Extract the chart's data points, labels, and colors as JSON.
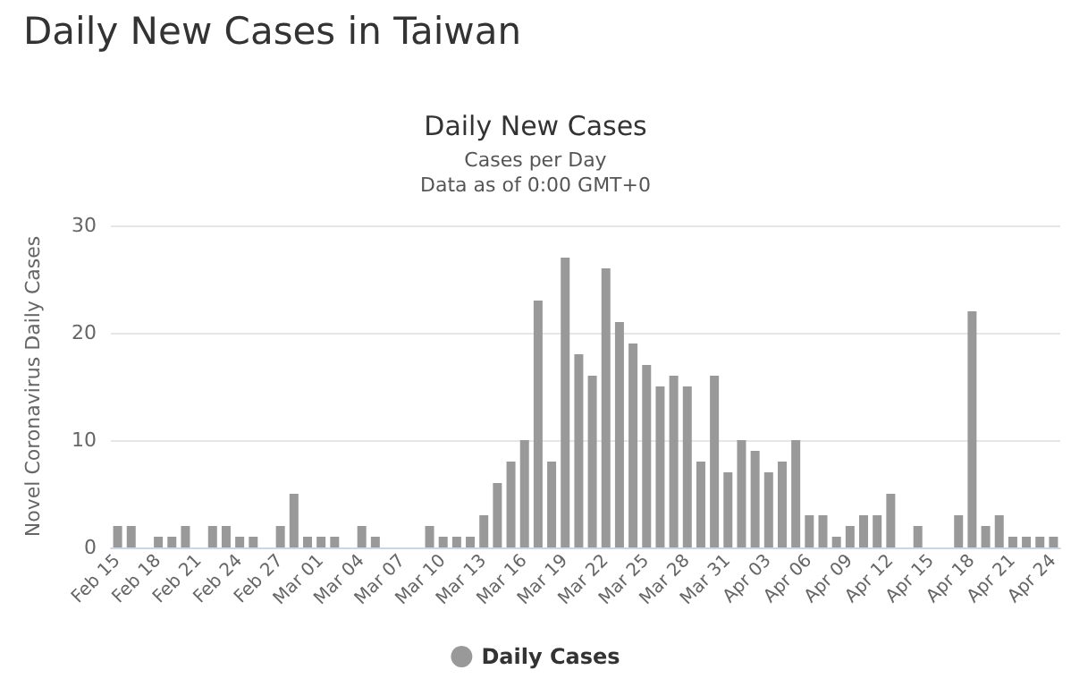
{
  "chart_data": {
    "type": "bar",
    "title": "Daily New Cases in Taiwan",
    "subtitle": "Daily New Cases",
    "annotations": [
      "Cases per Day",
      "Data as of 0:00 GMT+0"
    ],
    "ylabel": "Novel Coronavirus Daily Cases",
    "categories": [
      "Feb 15",
      null,
      null,
      "Feb 18",
      null,
      null,
      "Feb 21",
      null,
      null,
      "Feb 24",
      null,
      null,
      "Feb 27",
      null,
      null,
      "Mar 01",
      null,
      null,
      "Mar 04",
      null,
      null,
      "Mar 07",
      null,
      null,
      "Mar 10",
      null,
      null,
      "Mar 13",
      null,
      null,
      "Mar 16",
      null,
      null,
      "Mar 19",
      null,
      null,
      "Mar 22",
      null,
      null,
      "Mar 25",
      null,
      null,
      "Mar 28",
      null,
      null,
      "Mar 31",
      null,
      null,
      "Apr 03",
      null,
      null,
      "Apr 06",
      null,
      null,
      "Apr 09",
      null,
      null,
      "Apr 12",
      null,
      null,
      "Apr 15",
      null,
      null,
      "Apr 18",
      null,
      null,
      "Apr 21",
      null,
      null,
      "Apr 24"
    ],
    "series": [
      {
        "name": "Daily Cases",
        "color": "#999999",
        "values": [
          2,
          2,
          0,
          1,
          1,
          2,
          0,
          2,
          2,
          1,
          1,
          0,
          2,
          5,
          1,
          1,
          1,
          0,
          2,
          1,
          0,
          0,
          0,
          2,
          1,
          1,
          1,
          3,
          6,
          8,
          10,
          23,
          8,
          27,
          18,
          16,
          26,
          21,
          19,
          17,
          15,
          16,
          15,
          8,
          16,
          7,
          10,
          9,
          7,
          8,
          10,
          3,
          3,
          1,
          2,
          3,
          3,
          5,
          0,
          2,
          0,
          0,
          3,
          22,
          2,
          3,
          1,
          1,
          1,
          1
        ]
      }
    ],
    "ylim": [
      0,
      30
    ],
    "yticks": [
      0,
      10,
      20,
      30
    ],
    "grid": "y",
    "legend": "bottom"
  }
}
